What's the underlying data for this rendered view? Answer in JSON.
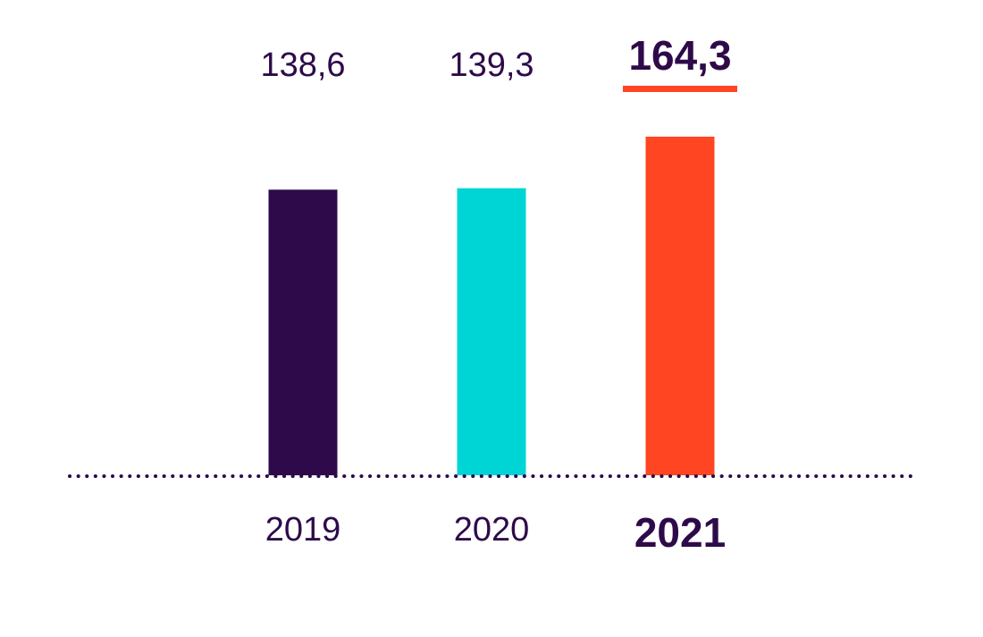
{
  "chart_data": {
    "type": "bar",
    "categories": [
      "2019",
      "2020",
      "2021"
    ],
    "values": [
      138.6,
      139.3,
      164.3
    ],
    "value_labels": [
      "138,6",
      "139,3",
      "164,3"
    ],
    "highlight_index": 2,
    "colors": [
      "#2e0a4a",
      "#00d5d5",
      "#ff4521"
    ],
    "underline_color": "#ff4521",
    "baseline_color": "#2e0a4a",
    "baseline_style": "dotted",
    "text_color": "#2e0a4a",
    "ylim": [
      0,
      164.3
    ],
    "title": "",
    "xlabel": "",
    "ylabel": "",
    "grid": false,
    "legend": "none"
  }
}
